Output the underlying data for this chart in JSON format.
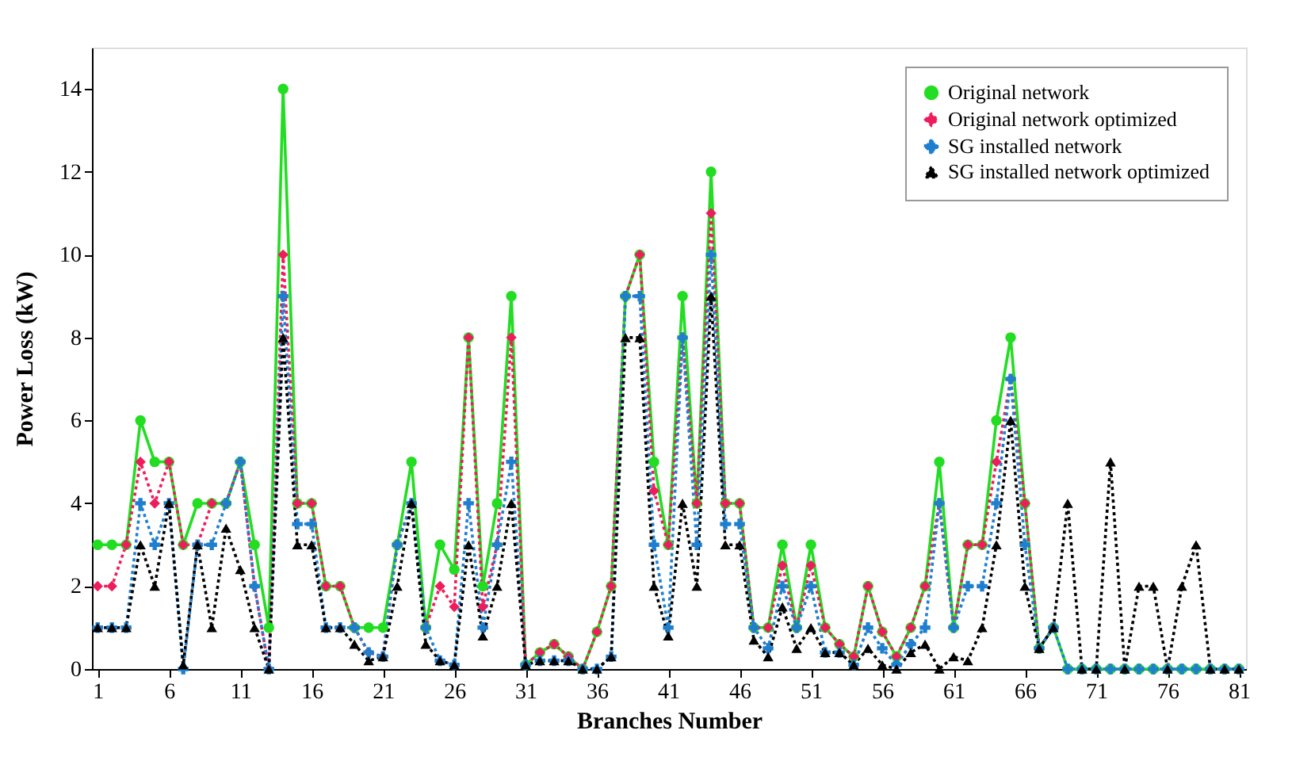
{
  "chart_data": {
    "type": "line",
    "xlabel": "Branches Number",
    "ylabel": "Power Loss (kW)",
    "x": [
      1,
      2,
      3,
      4,
      5,
      6,
      7,
      8,
      9,
      10,
      11,
      12,
      13,
      14,
      15,
      16,
      17,
      18,
      19,
      20,
      21,
      22,
      23,
      24,
      25,
      26,
      27,
      28,
      29,
      30,
      31,
      32,
      33,
      34,
      35,
      36,
      37,
      38,
      39,
      40,
      41,
      42,
      43,
      44,
      45,
      46,
      47,
      48,
      49,
      50,
      51,
      52,
      53,
      54,
      55,
      56,
      57,
      58,
      59,
      60,
      61,
      62,
      63,
      64,
      65,
      66,
      67,
      68,
      69,
      70,
      71,
      72,
      73,
      74,
      75,
      76,
      77,
      78,
      79,
      80,
      81
    ],
    "xlim": [
      0.6,
      81.5
    ],
    "xticks": [
      1,
      6,
      11,
      16,
      21,
      26,
      31,
      36,
      41,
      46,
      51,
      56,
      61,
      66,
      71,
      76,
      81
    ],
    "ylim": [
      0,
      15
    ],
    "yticks": [
      0,
      2,
      4,
      6,
      8,
      10,
      12,
      14
    ],
    "grid": false,
    "legend": "top right",
    "series": [
      {
        "name": "Original network",
        "color": "#22dd22",
        "marker": "circle",
        "line_style": "solid",
        "values": [
          3,
          3,
          3,
          6,
          5,
          5,
          3,
          4,
          4,
          4,
          5,
          3,
          1,
          14,
          4,
          4,
          2,
          2,
          1,
          1,
          1,
          3,
          5,
          1,
          3,
          2.4,
          8,
          2,
          4,
          9,
          0.1,
          0.4,
          0.6,
          0.3,
          0,
          0.9,
          2,
          9,
          10,
          5,
          3,
          9,
          4,
          12,
          4,
          4,
          1,
          1,
          3,
          1,
          3,
          1,
          0.6,
          0.3,
          2,
          0.9,
          0.3,
          1,
          2,
          5,
          1,
          3,
          3,
          6,
          8,
          4,
          0.5,
          1,
          0,
          0,
          0,
          0,
          0,
          0,
          0,
          0,
          0,
          0,
          0,
          0,
          0
        ]
      },
      {
        "name": "Original network optimized",
        "color": "#ee1c5c",
        "marker": "diamond",
        "line_style": "dotted",
        "values": [
          2,
          2,
          3,
          5,
          4,
          5,
          3,
          3,
          4,
          4,
          5,
          2,
          0,
          10,
          4,
          4,
          2,
          2,
          1,
          0.4,
          0.3,
          3,
          4,
          1,
          2,
          1.5,
          8,
          1.5,
          3,
          8,
          0.1,
          0.4,
          0.6,
          0.3,
          0,
          0.9,
          2,
          9,
          10,
          4.3,
          3,
          8,
          4,
          11,
          4,
          4,
          1,
          1,
          2.5,
          1,
          2.5,
          1,
          0.6,
          0.3,
          2,
          0.9,
          0.3,
          1,
          2,
          4,
          1,
          3,
          3,
          5,
          7,
          4,
          0.5,
          1,
          null,
          null,
          null,
          null,
          null,
          null,
          null,
          null,
          null,
          null,
          null,
          null,
          null
        ]
      },
      {
        "name": "SG installed network",
        "color": "#1f7fcf",
        "marker": "cross",
        "line_style": "dotted",
        "values": [
          1,
          1,
          1,
          4,
          3,
          4,
          0,
          3,
          3,
          4,
          5,
          2,
          0,
          9,
          3.5,
          3.5,
          1,
          1,
          1,
          0.4,
          0.3,
          3,
          4,
          1,
          0.2,
          0.1,
          4,
          1,
          3,
          5,
          0.1,
          0.2,
          0.2,
          0.2,
          0,
          0,
          0.3,
          9,
          9,
          3,
          1,
          8,
          3,
          10,
          3.5,
          3.5,
          1,
          0.5,
          2,
          1,
          2,
          0.4,
          0.4,
          0.1,
          1,
          0.5,
          0.1,
          0.6,
          1,
          4,
          1,
          2,
          2,
          4,
          7,
          3,
          0.5,
          1,
          0,
          0,
          0,
          0,
          0,
          0,
          0,
          0,
          0,
          0,
          0,
          0,
          0
        ]
      },
      {
        "name": "SG installed network optimized",
        "color": "#000000",
        "marker": "triangle",
        "line_style": "dotted",
        "values": [
          1,
          1,
          1,
          3,
          2,
          4,
          0.1,
          3,
          1,
          3.4,
          2.4,
          1,
          0,
          8,
          3,
          3,
          1,
          1,
          0.6,
          0.2,
          0.3,
          2,
          4,
          0.6,
          0.2,
          0.1,
          3,
          0.8,
          2,
          4,
          0.1,
          0.2,
          0.2,
          0.2,
          0,
          0,
          0.3,
          8,
          8,
          2,
          0.8,
          4,
          2,
          9,
          3,
          3,
          0.7,
          0.3,
          1.5,
          0.5,
          1,
          0.4,
          0.4,
          0.1,
          0.5,
          0.1,
          0,
          0.4,
          0.6,
          0,
          0.3,
          0.2,
          1,
          3,
          6,
          2,
          0.5,
          1,
          4,
          0,
          0,
          5,
          0,
          2,
          2,
          0,
          2,
          3,
          0,
          0,
          0
        ]
      }
    ]
  }
}
